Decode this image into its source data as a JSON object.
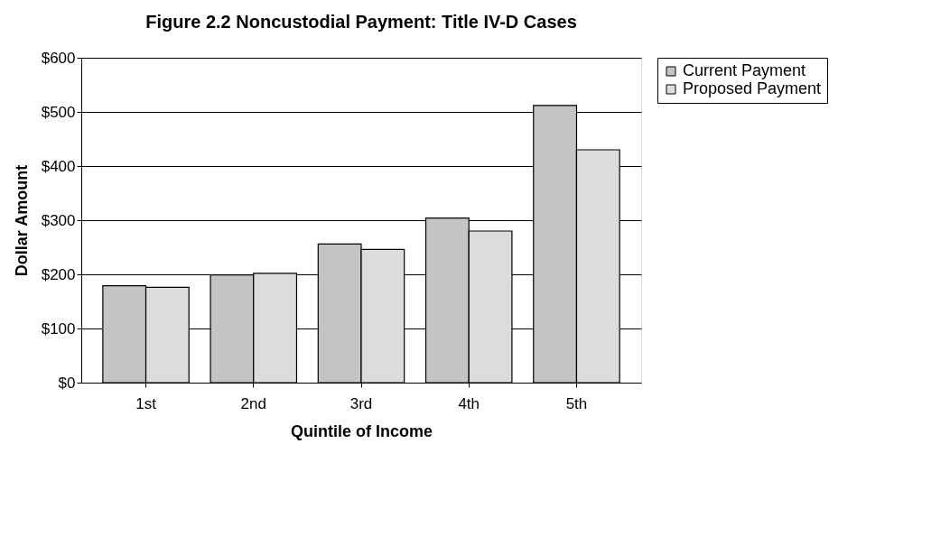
{
  "chart_data": {
    "type": "bar",
    "title": "Figure 2.2 Noncustodial Payment: Title IV-D Cases",
    "xlabel": "Quintile of Income",
    "ylabel": "Dollar Amount",
    "categories": [
      "1st",
      "2nd",
      "3rd",
      "4th",
      "5th"
    ],
    "series": [
      {
        "name": "Current Payment",
        "color": "#c4c4c4",
        "values": [
          179,
          199,
          256,
          304,
          512
        ]
      },
      {
        "name": "Proposed Payment",
        "color": "#dcdcdc",
        "values": [
          176,
          202,
          246,
          280,
          430
        ]
      }
    ],
    "ylim": [
      0,
      600
    ],
    "yticks": [
      {
        "value": 0,
        "label": "$0"
      },
      {
        "value": 100,
        "label": "$100"
      },
      {
        "value": 200,
        "label": "$200"
      },
      {
        "value": 300,
        "label": "$300"
      },
      {
        "value": 400,
        "label": "$400"
      },
      {
        "value": 500,
        "label": "$500"
      },
      {
        "value": 600,
        "label": "$600"
      }
    ],
    "grid": "y",
    "legend": "right"
  }
}
